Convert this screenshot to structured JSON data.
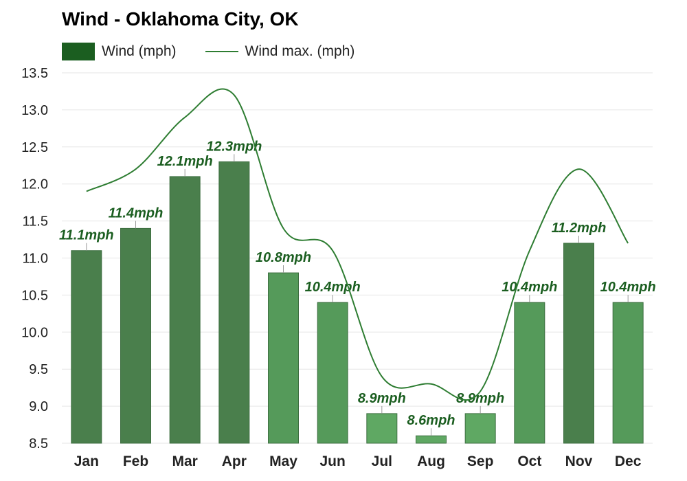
{
  "chart_data": {
    "type": "bar",
    "title": "Wind - Oklahoma City, OK",
    "categories": [
      "Jan",
      "Feb",
      "Mar",
      "Apr",
      "May",
      "Jun",
      "Jul",
      "Aug",
      "Sep",
      "Oct",
      "Nov",
      "Dec"
    ],
    "series": [
      {
        "name": "Wind (mph)",
        "type": "bar",
        "values": [
          11.1,
          11.4,
          12.1,
          12.3,
          10.8,
          10.4,
          8.9,
          8.6,
          8.9,
          10.4,
          11.2,
          10.4
        ],
        "labels": [
          "11.1mph",
          "11.4mph",
          "12.1mph",
          "12.3mph",
          "10.8mph",
          "10.4mph",
          "8.9mph",
          "8.6mph",
          "8.9mph",
          "10.4mph",
          "11.2mph",
          "10.4mph"
        ]
      },
      {
        "name": "Wind max. (mph)",
        "type": "line",
        "values": [
          11.9,
          12.2,
          12.9,
          13.2,
          11.4,
          11.1,
          9.4,
          9.3,
          9.2,
          11.1,
          12.2,
          11.2
        ]
      }
    ],
    "yticks": [
      "13.5",
      "13.0",
      "12.5",
      "12.0",
      "11.5",
      "11.0",
      "10.5",
      "10.0",
      "9.5",
      "9.0",
      "8.5"
    ],
    "ylim": [
      8.5,
      13.5
    ],
    "grid": true,
    "legend": "top-left",
    "colors": {
      "bar_dark": "#4a7f4c",
      "bar_mid": "#559a5a",
      "bar_light": "#5fa863",
      "line": "#2e7d32",
      "label": "#1b5e20",
      "grid": "#e6e6e6"
    }
  }
}
